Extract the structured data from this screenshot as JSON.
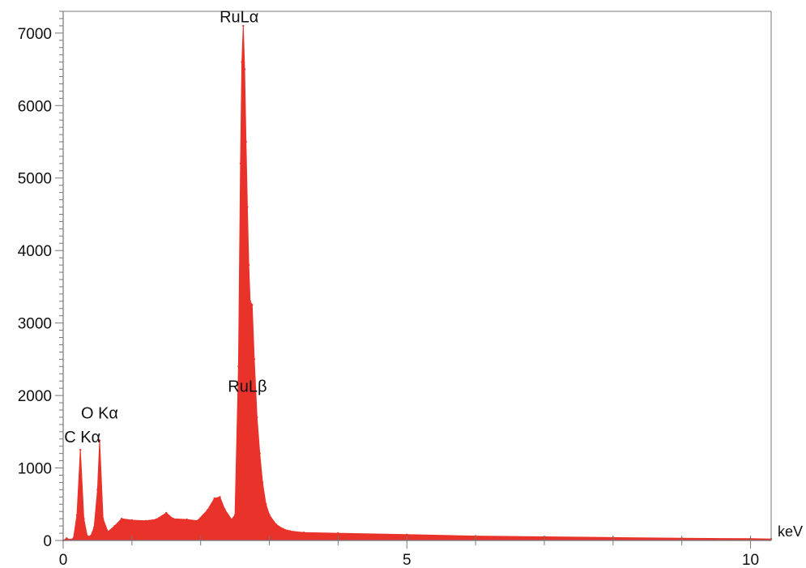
{
  "chart_data": {
    "type": "area",
    "title": "",
    "xlabel": "",
    "ylabel": "",
    "x_unit": "keV",
    "xlim": [
      0,
      10.3
    ],
    "ylim": [
      0,
      7300
    ],
    "x_ticks": [
      0,
      5,
      10
    ],
    "y_ticks": [
      0,
      1000,
      2000,
      3000,
      4000,
      5000,
      6000,
      7000
    ],
    "grid": false,
    "legend": "none",
    "colors": {
      "fill": "#e8322a",
      "axis": "#777777"
    },
    "annotations": [
      {
        "text": "C Kα",
        "x": 0.28,
        "y": 1350
      },
      {
        "text": "O Kα",
        "x": 0.53,
        "y": 1680
      },
      {
        "text": "RuLα",
        "x": 2.56,
        "y": 7150
      },
      {
        "text": "RuLβ",
        "x": 2.68,
        "y": 2050
      }
    ],
    "series": [
      {
        "values": [
          [
            0.0,
            0
          ],
          [
            0.05,
            30
          ],
          [
            0.1,
            10
          ],
          [
            0.15,
            30
          ],
          [
            0.2,
            350
          ],
          [
            0.25,
            1250
          ],
          [
            0.3,
            300
          ],
          [
            0.35,
            60
          ],
          [
            0.4,
            60
          ],
          [
            0.45,
            180
          ],
          [
            0.5,
            700
          ],
          [
            0.53,
            1380
          ],
          [
            0.58,
            300
          ],
          [
            0.65,
            120
          ],
          [
            0.75,
            200
          ],
          [
            0.85,
            300
          ],
          [
            1.0,
            280
          ],
          [
            1.2,
            270
          ],
          [
            1.35,
            290
          ],
          [
            1.5,
            380
          ],
          [
            1.6,
            300
          ],
          [
            1.8,
            290
          ],
          [
            1.95,
            270
          ],
          [
            2.1,
            420
          ],
          [
            2.2,
            580
          ],
          [
            2.28,
            600
          ],
          [
            2.35,
            430
          ],
          [
            2.45,
            290
          ],
          [
            2.5,
            350
          ],
          [
            2.55,
            2400
          ],
          [
            2.58,
            5200
          ],
          [
            2.6,
            6600
          ],
          [
            2.62,
            7100
          ],
          [
            2.64,
            6500
          ],
          [
            2.66,
            5500
          ],
          [
            2.68,
            4600
          ],
          [
            2.7,
            3800
          ],
          [
            2.72,
            3300
          ],
          [
            2.75,
            3250
          ],
          [
            2.78,
            2500
          ],
          [
            2.82,
            1700
          ],
          [
            2.86,
            1200
          ],
          [
            2.9,
            800
          ],
          [
            2.95,
            500
          ],
          [
            3.0,
            350
          ],
          [
            3.1,
            220
          ],
          [
            3.2,
            160
          ],
          [
            3.3,
            130
          ],
          [
            3.5,
            110
          ],
          [
            4.0,
            100
          ],
          [
            5.0,
            80
          ],
          [
            6.0,
            60
          ],
          [
            7.0,
            50
          ],
          [
            8.0,
            40
          ],
          [
            9.0,
            30
          ],
          [
            10.0,
            25
          ],
          [
            10.3,
            20
          ]
        ]
      }
    ]
  }
}
